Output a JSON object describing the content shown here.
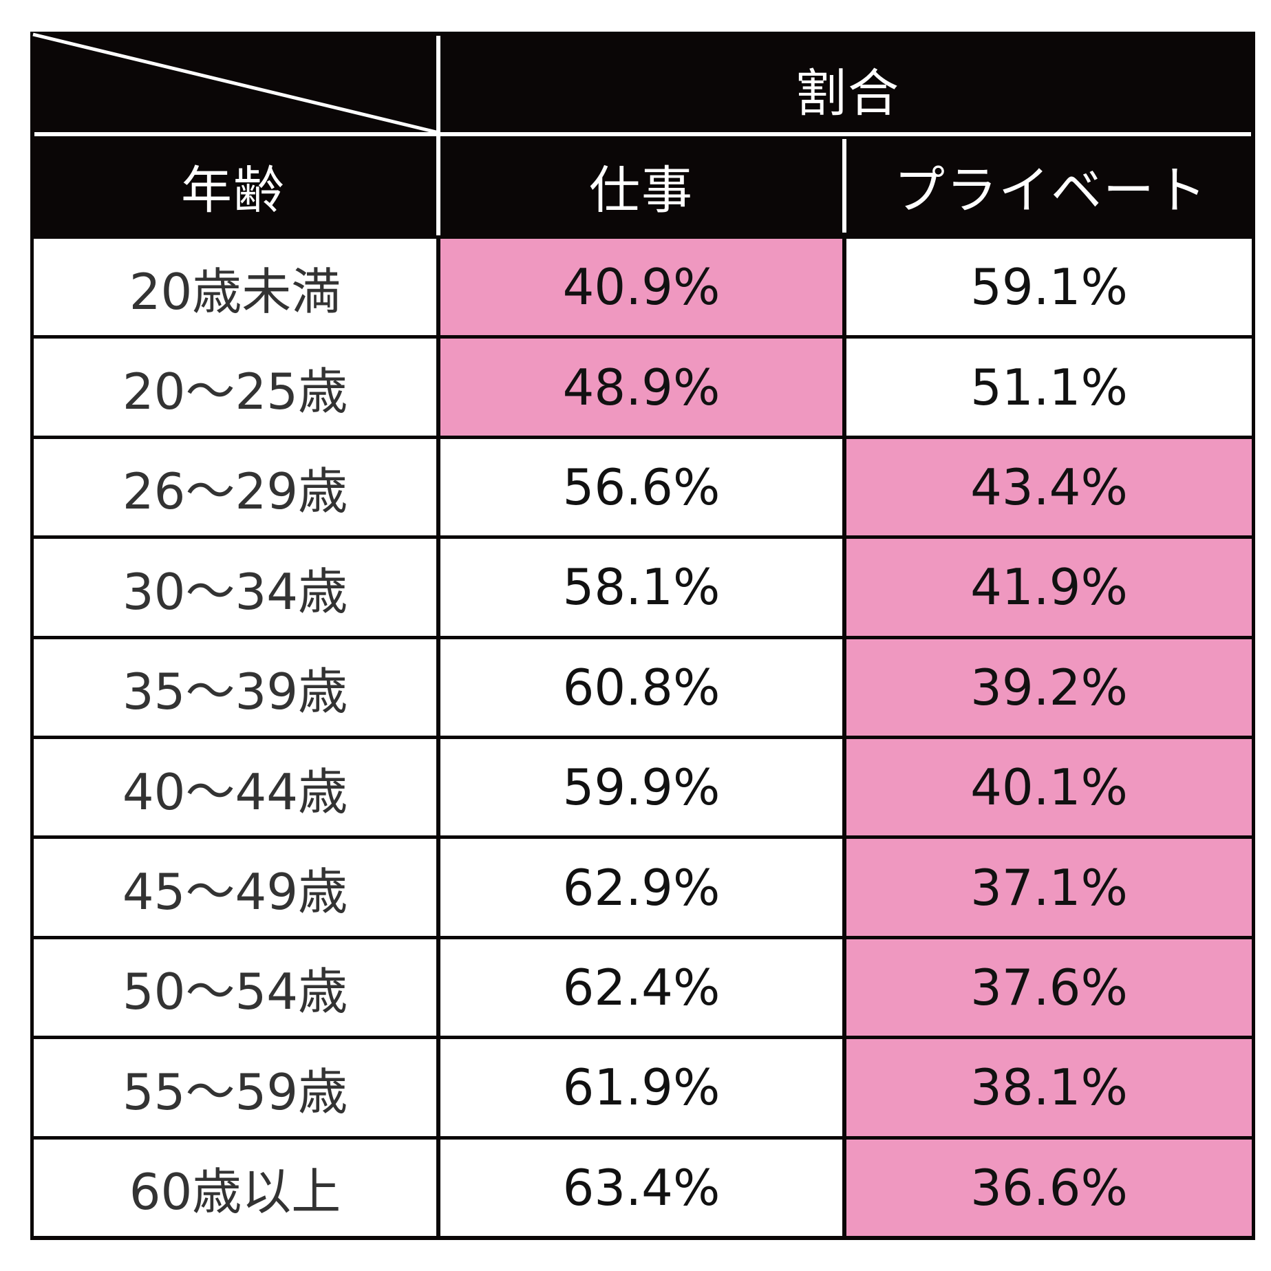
{
  "header": {
    "group_label": "割合",
    "age_label": "年齢",
    "work_label": "仕事",
    "private_label": "プライベート"
  },
  "colors": {
    "highlight": "#ef98c0",
    "header_bg": "#0a0606",
    "header_text": "#ffffff",
    "cell_bg": "#ffffff"
  },
  "rows": [
    {
      "age": "20歳未満",
      "work": "40.9%",
      "private": "59.1%",
      "highlight": "work"
    },
    {
      "age": "20～25歳",
      "work": "48.9%",
      "private": "51.1%",
      "highlight": "work"
    },
    {
      "age": "26～29歳",
      "work": "56.6%",
      "private": "43.4%",
      "highlight": "private"
    },
    {
      "age": "30～34歳",
      "work": "58.1%",
      "private": "41.9%",
      "highlight": "private"
    },
    {
      "age": "35～39歳",
      "work": "60.8%",
      "private": "39.2%",
      "highlight": "private"
    },
    {
      "age": "40～44歳",
      "work": "59.9%",
      "private": "40.1%",
      "highlight": "private"
    },
    {
      "age": "45～49歳",
      "work": "62.9%",
      "private": "37.1%",
      "highlight": "private"
    },
    {
      "age": "50～54歳",
      "work": "62.4%",
      "private": "37.6%",
      "highlight": "private"
    },
    {
      "age": "55～59歳",
      "work": "61.9%",
      "private": "38.1%",
      "highlight": "private"
    },
    {
      "age": "60歳以上",
      "work": "63.4%",
      "private": "36.6%",
      "highlight": "private"
    }
  ]
}
